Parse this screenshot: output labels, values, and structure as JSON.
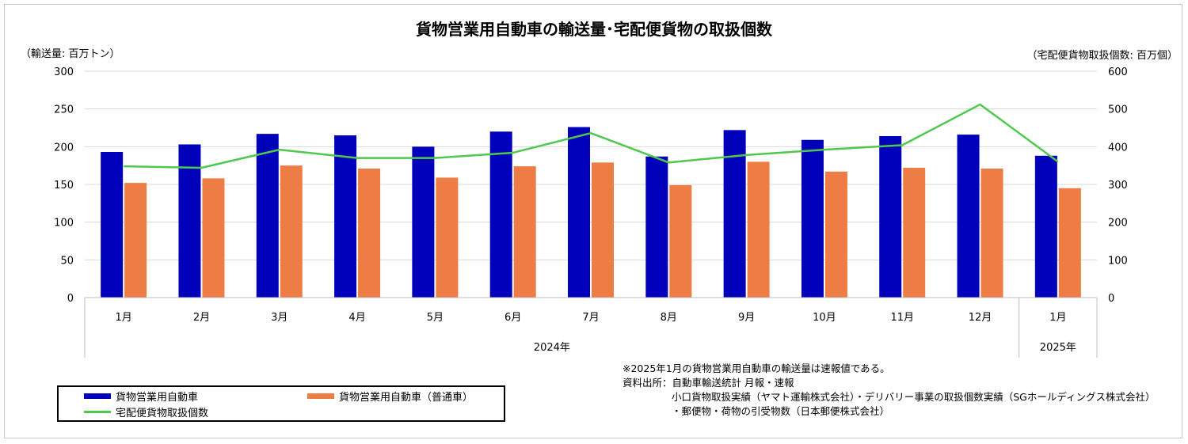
{
  "chart_data": {
    "type": "bar",
    "title": "貨物営業用自動車の輸送量･宅配便貨物の取扱個数",
    "y_left_label": "（輸送量: 百万トン）",
    "y_right_label": "（宅配便貨物取扱個数: 百万個）",
    "ylim_left": [
      0,
      300
    ],
    "ylim_right": [
      0,
      600
    ],
    "y_left_ticks": [
      0,
      50,
      100,
      150,
      200,
      250,
      300
    ],
    "y_right_ticks": [
      0,
      100,
      200,
      300,
      400,
      500,
      600
    ],
    "grid": true,
    "legend_position": "bottom-left",
    "categories": [
      "1月",
      "2月",
      "3月",
      "4月",
      "5月",
      "6月",
      "7月",
      "8月",
      "9月",
      "10月",
      "11月",
      "12月",
      "1月"
    ],
    "year_groups": [
      {
        "label": "2024年",
        "count": 12
      },
      {
        "label": "2025年",
        "count": 1
      }
    ],
    "series": [
      {
        "name": "貨物営業用自動車",
        "type": "bar",
        "axis": "left",
        "color": "#0000bb",
        "values": [
          193,
          203,
          217,
          215,
          200,
          220,
          226,
          187,
          222,
          209,
          214,
          216,
          188
        ]
      },
      {
        "name": "貨物営業用自動車（普通車）",
        "type": "bar",
        "axis": "left",
        "color": "#ed7d45",
        "values": [
          152,
          158,
          175,
          171,
          159,
          174,
          179,
          149,
          180,
          167,
          172,
          171,
          145
        ]
      },
      {
        "name": "宅配便貨物取扱個数",
        "type": "line",
        "axis": "right",
        "color": "#4ec94e",
        "values": [
          348,
          344,
          392,
          370,
          370,
          384,
          436,
          358,
          378,
          392,
          404,
          512,
          360
        ]
      }
    ]
  },
  "notes": [
    "※2025年1月の貨物営業用自動車の輸送量は速報値である。",
    "資料出所：自動車輸送統計 月報・速報",
    "小口貨物取扱実績（ヤマト運輸株式会社）・デリバリー事業の取扱個数実績（SGホールディングス株式会社）",
    "・郵便物・荷物の引受物数（日本郵便株式会社）"
  ]
}
